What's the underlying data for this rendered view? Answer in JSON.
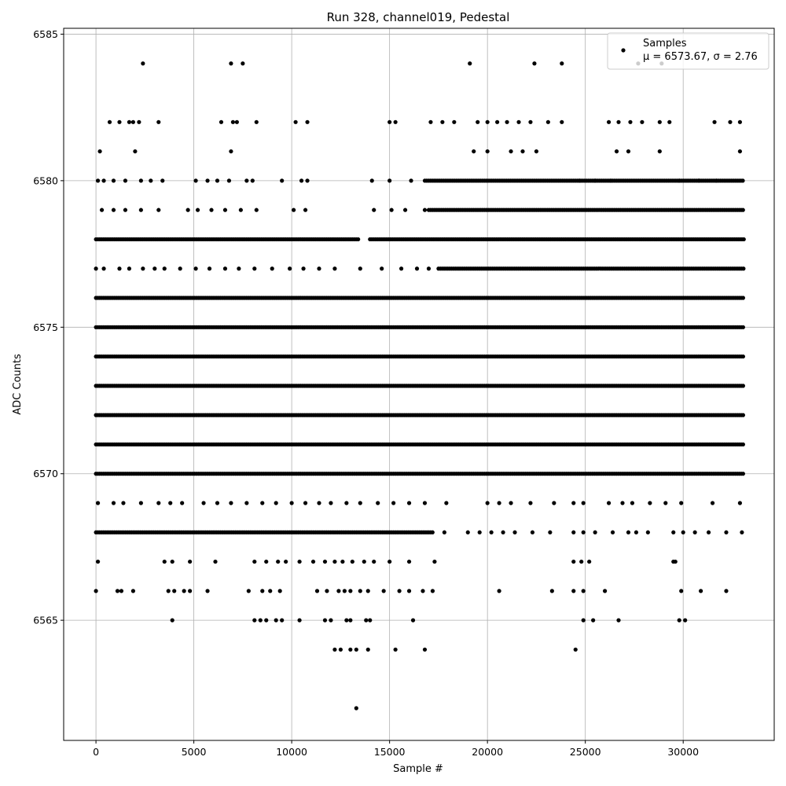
{
  "chart_data": {
    "type": "scatter",
    "title": "Run 328, channel019, Pedestal",
    "xlabel": "Sample #",
    "ylabel": "ADC Counts",
    "xlim": [
      -1650,
      34650
    ],
    "ylim": [
      6560.9,
      6585.2
    ],
    "x_ticks": [
      0,
      5000,
      10000,
      15000,
      20000,
      25000,
      30000
    ],
    "y_ticks": [
      6565,
      6570,
      6575,
      6580,
      6585
    ],
    "grid": true,
    "legend_position": "top-right",
    "series": [
      {
        "name": "Samples",
        "color": "#000000",
        "marker": "circle",
        "sample_range": [
          0,
          33100
        ],
        "levels": [
          {
            "y": 6578,
            "x_ranges": [
              [
                0,
                13400
              ],
              [
                14000,
                33100
              ]
            ]
          },
          {
            "y": 6576,
            "x_ranges": [
              [
                0,
                33100
              ]
            ]
          },
          {
            "y": 6574,
            "x_ranges": [
              [
                0,
                33100
              ]
            ]
          },
          {
            "y": 6572,
            "x_ranges": [
              [
                0,
                33100
              ]
            ]
          },
          {
            "y": 6571,
            "x_ranges": [
              [
                0,
                33100
              ]
            ]
          },
          {
            "y": 6570,
            "x_ranges": [
              [
                0,
                33100
              ]
            ]
          },
          {
            "y": 6575,
            "x_ranges": [
              [
                0,
                33100
              ]
            ]
          },
          {
            "y": 6573,
            "x_ranges": [
              [
                0,
                33100
              ]
            ]
          },
          {
            "y": 6579,
            "x_ranges": [
              [
                17000,
                33100
              ]
            ]
          },
          {
            "y": 6580,
            "x_ranges": [
              [
                16800,
                33100
              ]
            ]
          },
          {
            "y": 6568,
            "x_ranges": [
              [
                0,
                17200
              ]
            ]
          },
          {
            "y": 6577,
            "x_ranges": [
              [
                17500,
                33100
              ]
            ]
          }
        ],
        "points": [
          [
            2400,
            6584
          ],
          [
            6900,
            6584
          ],
          [
            7500,
            6584
          ],
          [
            19100,
            6584
          ],
          [
            22400,
            6584
          ],
          [
            23800,
            6584
          ],
          [
            27700,
            6584
          ],
          [
            28900,
            6584
          ],
          [
            700,
            6582
          ],
          [
            1200,
            6582
          ],
          [
            1700,
            6582
          ],
          [
            1900,
            6582
          ],
          [
            2200,
            6582
          ],
          [
            3200,
            6582
          ],
          [
            6400,
            6582
          ],
          [
            7000,
            6582
          ],
          [
            7200,
            6582
          ],
          [
            8200,
            6582
          ],
          [
            10200,
            6582
          ],
          [
            10800,
            6582
          ],
          [
            15000,
            6582
          ],
          [
            15300,
            6582
          ],
          [
            17100,
            6582
          ],
          [
            17700,
            6582
          ],
          [
            18300,
            6582
          ],
          [
            19500,
            6582
          ],
          [
            20000,
            6582
          ],
          [
            20500,
            6582
          ],
          [
            21000,
            6582
          ],
          [
            21600,
            6582
          ],
          [
            22200,
            6582
          ],
          [
            23100,
            6582
          ],
          [
            23800,
            6582
          ],
          [
            26200,
            6582
          ],
          [
            26700,
            6582
          ],
          [
            27300,
            6582
          ],
          [
            27900,
            6582
          ],
          [
            28800,
            6582
          ],
          [
            29300,
            6582
          ],
          [
            31600,
            6582
          ],
          [
            32400,
            6582
          ],
          [
            32900,
            6582
          ],
          [
            200,
            6581
          ],
          [
            2000,
            6581
          ],
          [
            6900,
            6581
          ],
          [
            19300,
            6581
          ],
          [
            20000,
            6581
          ],
          [
            21200,
            6581
          ],
          [
            21800,
            6581
          ],
          [
            22500,
            6581
          ],
          [
            26600,
            6581
          ],
          [
            27200,
            6581
          ],
          [
            28800,
            6581
          ],
          [
            32900,
            6581
          ],
          [
            100,
            6580
          ],
          [
            400,
            6580
          ],
          [
            900,
            6580
          ],
          [
            1500,
            6580
          ],
          [
            2300,
            6580
          ],
          [
            2800,
            6580
          ],
          [
            3400,
            6580
          ],
          [
            5100,
            6580
          ],
          [
            5700,
            6580
          ],
          [
            6200,
            6580
          ],
          [
            6800,
            6580
          ],
          [
            7700,
            6580
          ],
          [
            8000,
            6580
          ],
          [
            9500,
            6580
          ],
          [
            10500,
            6580
          ],
          [
            10800,
            6580
          ],
          [
            14100,
            6580
          ],
          [
            15000,
            6580
          ],
          [
            16100,
            6580
          ],
          [
            24700,
            6580
          ],
          [
            25500,
            6580
          ],
          [
            26300,
            6580
          ],
          [
            29800,
            6580
          ],
          [
            30800,
            6580
          ],
          [
            31700,
            6580
          ],
          [
            300,
            6579
          ],
          [
            900,
            6579
          ],
          [
            1500,
            6579
          ],
          [
            2300,
            6579
          ],
          [
            3200,
            6579
          ],
          [
            4700,
            6579
          ],
          [
            5200,
            6579
          ],
          [
            5900,
            6579
          ],
          [
            6600,
            6579
          ],
          [
            7400,
            6579
          ],
          [
            8200,
            6579
          ],
          [
            10100,
            6579
          ],
          [
            10700,
            6579
          ],
          [
            14200,
            6579
          ],
          [
            15100,
            6579
          ],
          [
            15800,
            6579
          ],
          [
            16800,
            6579
          ],
          [
            0,
            6577
          ],
          [
            400,
            6577
          ],
          [
            1200,
            6577
          ],
          [
            1700,
            6577
          ],
          [
            2400,
            6577
          ],
          [
            3000,
            6577
          ],
          [
            3500,
            6577
          ],
          [
            4300,
            6577
          ],
          [
            5100,
            6577
          ],
          [
            5800,
            6577
          ],
          [
            6600,
            6577
          ],
          [
            7300,
            6577
          ],
          [
            8100,
            6577
          ],
          [
            9000,
            6577
          ],
          [
            9900,
            6577
          ],
          [
            10600,
            6577
          ],
          [
            11400,
            6577
          ],
          [
            12200,
            6577
          ],
          [
            13500,
            6577
          ],
          [
            14600,
            6577
          ],
          [
            15600,
            6577
          ],
          [
            16400,
            6577
          ],
          [
            17000,
            6577
          ],
          [
            100,
            6569
          ],
          [
            900,
            6569
          ],
          [
            1400,
            6569
          ],
          [
            2300,
            6569
          ],
          [
            3200,
            6569
          ],
          [
            3800,
            6569
          ],
          [
            4400,
            6569
          ],
          [
            5500,
            6569
          ],
          [
            6200,
            6569
          ],
          [
            6900,
            6569
          ],
          [
            7700,
            6569
          ],
          [
            8500,
            6569
          ],
          [
            9200,
            6569
          ],
          [
            10000,
            6569
          ],
          [
            10700,
            6569
          ],
          [
            11400,
            6569
          ],
          [
            12000,
            6569
          ],
          [
            12800,
            6569
          ],
          [
            13500,
            6569
          ],
          [
            14400,
            6569
          ],
          [
            15200,
            6569
          ],
          [
            16000,
            6569
          ],
          [
            16800,
            6569
          ],
          [
            17900,
            6569
          ],
          [
            20000,
            6569
          ],
          [
            20600,
            6569
          ],
          [
            21200,
            6569
          ],
          [
            22200,
            6569
          ],
          [
            23400,
            6569
          ],
          [
            24400,
            6569
          ],
          [
            24900,
            6569
          ],
          [
            26200,
            6569
          ],
          [
            26900,
            6569
          ],
          [
            27400,
            6569
          ],
          [
            28300,
            6569
          ],
          [
            29100,
            6569
          ],
          [
            29900,
            6569
          ],
          [
            31500,
            6569
          ],
          [
            32900,
            6569
          ],
          [
            17800,
            6568
          ],
          [
            19000,
            6568
          ],
          [
            19600,
            6568
          ],
          [
            20200,
            6568
          ],
          [
            20800,
            6568
          ],
          [
            21400,
            6568
          ],
          [
            22300,
            6568
          ],
          [
            23200,
            6568
          ],
          [
            24400,
            6568
          ],
          [
            24900,
            6568
          ],
          [
            25500,
            6568
          ],
          [
            26400,
            6568
          ],
          [
            27200,
            6568
          ],
          [
            27600,
            6568
          ],
          [
            28200,
            6568
          ],
          [
            29500,
            6568
          ],
          [
            30000,
            6568
          ],
          [
            30600,
            6568
          ],
          [
            31300,
            6568
          ],
          [
            32200,
            6568
          ],
          [
            33000,
            6568
          ],
          [
            100,
            6567
          ],
          [
            3500,
            6567
          ],
          [
            3900,
            6567
          ],
          [
            4800,
            6567
          ],
          [
            6100,
            6567
          ],
          [
            8100,
            6567
          ],
          [
            8700,
            6567
          ],
          [
            9300,
            6567
          ],
          [
            9700,
            6567
          ],
          [
            10400,
            6567
          ],
          [
            11100,
            6567
          ],
          [
            11700,
            6567
          ],
          [
            12200,
            6567
          ],
          [
            12600,
            6567
          ],
          [
            13100,
            6567
          ],
          [
            13700,
            6567
          ],
          [
            14200,
            6567
          ],
          [
            15000,
            6567
          ],
          [
            16000,
            6567
          ],
          [
            17300,
            6567
          ],
          [
            24400,
            6567
          ],
          [
            24800,
            6567
          ],
          [
            25200,
            6567
          ],
          [
            29500,
            6567
          ],
          [
            29600,
            6567
          ],
          [
            0,
            6566
          ],
          [
            1100,
            6566
          ],
          [
            1300,
            6566
          ],
          [
            1900,
            6566
          ],
          [
            3700,
            6566
          ],
          [
            4000,
            6566
          ],
          [
            4500,
            6566
          ],
          [
            4800,
            6566
          ],
          [
            5700,
            6566
          ],
          [
            7800,
            6566
          ],
          [
            8500,
            6566
          ],
          [
            8900,
            6566
          ],
          [
            9400,
            6566
          ],
          [
            11300,
            6566
          ],
          [
            11800,
            6566
          ],
          [
            12400,
            6566
          ],
          [
            12700,
            6566
          ],
          [
            13000,
            6566
          ],
          [
            13500,
            6566
          ],
          [
            13900,
            6566
          ],
          [
            14700,
            6566
          ],
          [
            15500,
            6566
          ],
          [
            16000,
            6566
          ],
          [
            16700,
            6566
          ],
          [
            17200,
            6566
          ],
          [
            20600,
            6566
          ],
          [
            23300,
            6566
          ],
          [
            24400,
            6566
          ],
          [
            24900,
            6566
          ],
          [
            26000,
            6566
          ],
          [
            29900,
            6566
          ],
          [
            30900,
            6566
          ],
          [
            32200,
            6566
          ],
          [
            3900,
            6565
          ],
          [
            8100,
            6565
          ],
          [
            8400,
            6565
          ],
          [
            8700,
            6565
          ],
          [
            9200,
            6565
          ],
          [
            9500,
            6565
          ],
          [
            10400,
            6565
          ],
          [
            11700,
            6565
          ],
          [
            12000,
            6565
          ],
          [
            12800,
            6565
          ],
          [
            13000,
            6565
          ],
          [
            13800,
            6565
          ],
          [
            14000,
            6565
          ],
          [
            16200,
            6565
          ],
          [
            24900,
            6565
          ],
          [
            25400,
            6565
          ],
          [
            26700,
            6565
          ],
          [
            29800,
            6565
          ],
          [
            30100,
            6565
          ],
          [
            12200,
            6564
          ],
          [
            12500,
            6564
          ],
          [
            13000,
            6564
          ],
          [
            13300,
            6564
          ],
          [
            13900,
            6564
          ],
          [
            15300,
            6564
          ],
          [
            16800,
            6564
          ],
          [
            24500,
            6564
          ],
          [
            13300,
            6562
          ]
        ]
      }
    ],
    "legend": {
      "label": "Samples",
      "stats_text": "μ = 6573.67, σ = 2.76"
    }
  }
}
